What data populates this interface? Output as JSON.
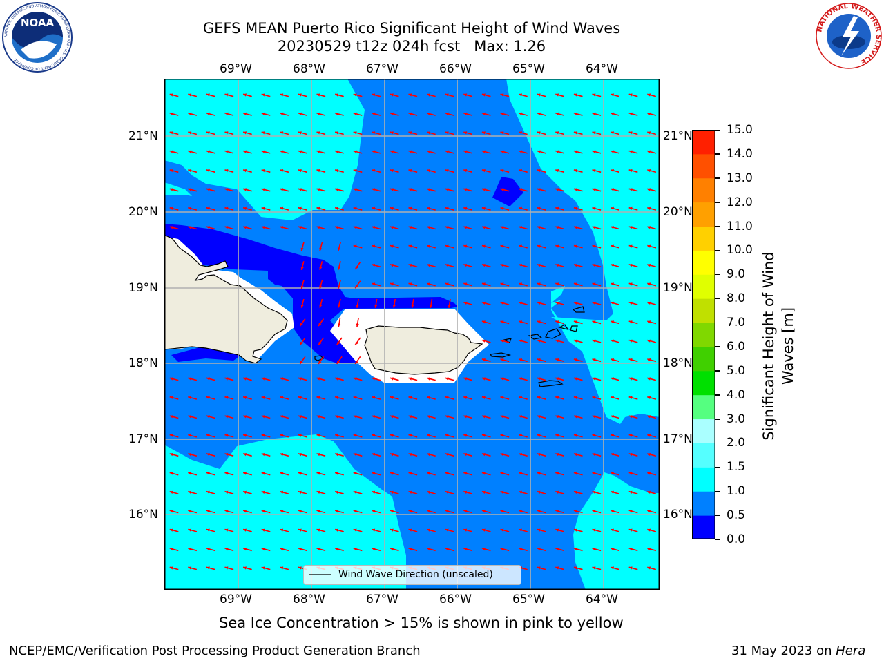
{
  "title_line1": "GEFS MEAN Puerto Rico Significant Height of Wind Waves",
  "title_line2": "20230529 t12z 024h fcst   Max: 1.26",
  "logos": {
    "noaa_text": "NOAA",
    "noaa_ring_text": "NATIONAL OCEANIC AND ATMOSPHERIC ADMINISTRATION · U.S. DEPARTMENT OF COMMERCE",
    "nws_ring_text": "NATIONAL WEATHER SERVICE"
  },
  "map": {
    "lon_labels": [
      "69°W",
      "68°W",
      "67°W",
      "66°W",
      "65°W",
      "64°W"
    ],
    "lat_labels": [
      "21°N",
      "20°N",
      "19°N",
      "18°N",
      "17°N",
      "16°N"
    ],
    "legend_label": "Wind Wave Direction (unscaled)",
    "arrow_color": "#ff0000",
    "land_color": "#efedde"
  },
  "colorbar": {
    "label": "Significant Height of Wind Waves [m]",
    "label_line1": "Significant Height of Wind",
    "label_line2": "Waves [m]",
    "ticks": [
      "0.0",
      "0.5",
      "1.0",
      "1.5",
      "2.0",
      "3.0",
      "4.0",
      "5.0",
      "6.0",
      "7.0",
      "8.0",
      "9.0",
      "10.0",
      "11.0",
      "12.0",
      "13.0",
      "14.0",
      "15.0"
    ],
    "colors": [
      "#0000ff",
      "#0080ff",
      "#00ffff",
      "#55ffff",
      "#aaffff",
      "#55ff80",
      "#00e000",
      "#40d000",
      "#80d800",
      "#c0e000",
      "#e0ff00",
      "#ffff00",
      "#ffd000",
      "#ffa000",
      "#ff8000",
      "#ff5000",
      "#ff2000",
      "#ff0000"
    ]
  },
  "sea_ice_note": "Sea Ice Concentration > 15% is shown in pink to yellow",
  "footer_left": "NCEP/EMC/Verification Post Processing Product Generation Branch",
  "footer_date": "31 May 2023 on ",
  "footer_host": "Hera"
}
